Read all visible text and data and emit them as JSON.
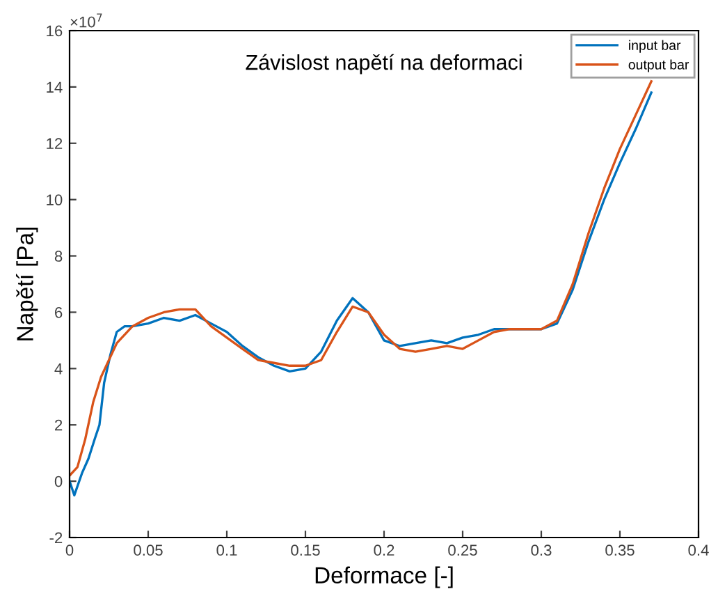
{
  "chart_data": {
    "type": "line",
    "title": "Závislost napětí na deformaci",
    "xlabel": "Deformace [-]",
    "ylabel": "Napětí [Pa]",
    "annotations": [
      "×10$^{7}$"
    ],
    "xlim": [
      0,
      0.4
    ],
    "xticks": [
      0,
      0.05,
      0.1,
      0.15,
      0.2,
      0.25,
      0.3,
      0.35,
      0.4
    ],
    "ylim": [
      -2,
      16
    ],
    "yticks": [
      -2,
      0,
      2,
      4,
      6,
      8,
      10,
      12,
      14,
      16
    ],
    "grid": false,
    "legend": "top right",
    "series": [
      {
        "name": "input bar",
        "color": "#0072bd",
        "x": [
          0,
          0.003,
          0.008,
          0.012,
          0.016,
          0.019,
          0.022,
          0.026,
          0.03,
          0.035,
          0.04,
          0.05,
          0.06,
          0.07,
          0.08,
          0.09,
          0.1,
          0.11,
          0.12,
          0.13,
          0.14,
          0.15,
          0.16,
          0.17,
          0.18,
          0.19,
          0.2,
          0.21,
          0.22,
          0.23,
          0.24,
          0.25,
          0.26,
          0.27,
          0.28,
          0.29,
          0.3,
          0.31,
          0.32,
          0.33,
          0.34,
          0.35,
          0.36,
          0.37
        ],
        "values": [
          0,
          -0.5,
          0.3,
          0.8,
          1.5,
          2,
          3.5,
          4.5,
          5.3,
          5.5,
          5.5,
          5.6,
          5.8,
          5.7,
          5.9,
          5.6,
          5.3,
          4.8,
          4.4,
          4.1,
          3.9,
          4.0,
          4.6,
          5.7,
          6.5,
          6.0,
          5.0,
          4.8,
          4.9,
          5.0,
          4.9,
          5.1,
          5.2,
          5.4,
          5.4,
          5.4,
          5.4,
          5.6,
          6.8,
          8.5,
          10.0,
          11.3,
          12.5,
          13.8
        ]
      },
      {
        "name": "output bar",
        "color": "#d95319",
        "x": [
          0,
          0.005,
          0.01,
          0.015,
          0.02,
          0.025,
          0.03,
          0.04,
          0.05,
          0.06,
          0.07,
          0.08,
          0.09,
          0.1,
          0.11,
          0.12,
          0.13,
          0.14,
          0.15,
          0.16,
          0.17,
          0.18,
          0.19,
          0.2,
          0.21,
          0.22,
          0.23,
          0.24,
          0.25,
          0.26,
          0.27,
          0.28,
          0.29,
          0.3,
          0.31,
          0.32,
          0.33,
          0.34,
          0.35,
          0.36,
          0.37
        ],
        "values": [
          0.2,
          0.5,
          1.5,
          2.8,
          3.7,
          4.3,
          4.9,
          5.5,
          5.8,
          6.0,
          6.1,
          6.1,
          5.5,
          5.1,
          4.7,
          4.3,
          4.2,
          4.1,
          4.1,
          4.3,
          5.3,
          6.2,
          6.0,
          5.2,
          4.7,
          4.6,
          4.7,
          4.8,
          4.7,
          5.0,
          5.3,
          5.4,
          5.4,
          5.4,
          5.7,
          7.0,
          8.8,
          10.4,
          11.8,
          13.0,
          14.2
        ]
      }
    ]
  }
}
